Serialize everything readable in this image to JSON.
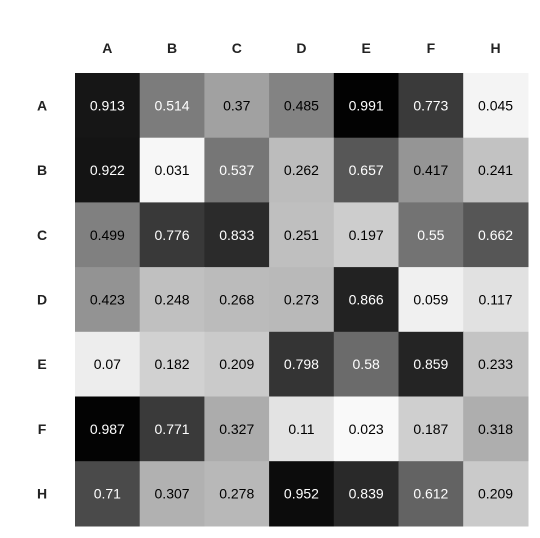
{
  "chart_data": {
    "type": "heatmap",
    "title": "",
    "xlabel": "",
    "ylabel": "",
    "x_categories": [
      "A",
      "B",
      "C",
      "D",
      "E",
      "F",
      "H"
    ],
    "y_categories": [
      "A",
      "B",
      "C",
      "D",
      "E",
      "F",
      "H"
    ],
    "values": [
      [
        0.913,
        0.514,
        0.37,
        0.485,
        0.991,
        0.773,
        0.045
      ],
      [
        0.922,
        0.031,
        0.537,
        0.262,
        0.657,
        0.417,
        0.241
      ],
      [
        0.499,
        0.776,
        0.833,
        0.251,
        0.197,
        0.55,
        0.662
      ],
      [
        0.423,
        0.248,
        0.268,
        0.273,
        0.866,
        0.059,
        0.117
      ],
      [
        0.07,
        0.182,
        0.209,
        0.798,
        0.58,
        0.859,
        0.233
      ],
      [
        0.987,
        0.771,
        0.327,
        0.11,
        0.023,
        0.187,
        0.318
      ],
      [
        0.71,
        0.307,
        0.278,
        0.952,
        0.839,
        0.612,
        0.209
      ]
    ],
    "value_range": [
      0,
      1
    ],
    "colormap": "greys",
    "color_low": "#ffffff",
    "color_high": "#000000",
    "grid": false,
    "legend": "none"
  }
}
